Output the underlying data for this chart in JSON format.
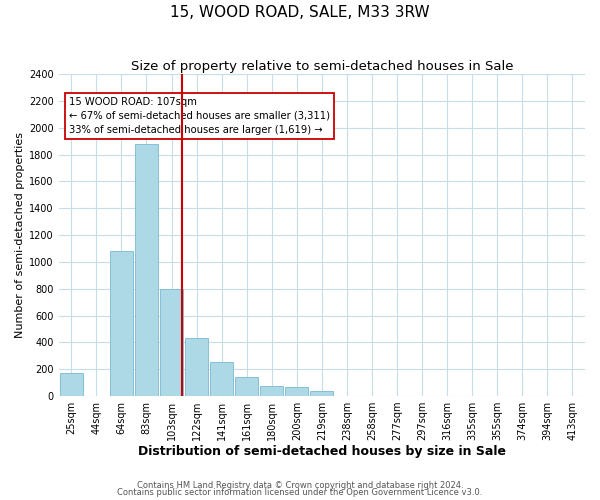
{
  "title": "15, WOOD ROAD, SALE, M33 3RW",
  "subtitle": "Size of property relative to semi-detached houses in Sale",
  "xlabel": "Distribution of semi-detached houses by size in Sale",
  "ylabel": "Number of semi-detached properties",
  "bar_labels": [
    "25sqm",
    "44sqm",
    "64sqm",
    "83sqm",
    "103sqm",
    "122sqm",
    "141sqm",
    "161sqm",
    "180sqm",
    "200sqm",
    "219sqm",
    "238sqm",
    "258sqm",
    "277sqm",
    "297sqm",
    "316sqm",
    "335sqm",
    "355sqm",
    "374sqm",
    "394sqm",
    "413sqm"
  ],
  "bar_values": [
    170,
    0,
    1080,
    1880,
    800,
    430,
    250,
    145,
    75,
    65,
    40,
    0,
    0,
    0,
    0,
    0,
    0,
    0,
    0,
    0,
    0
  ],
  "bar_color": "#add8e6",
  "bar_edge_color": "#7ab8d4",
  "vline_color": "#cc0000",
  "vline_index": 4,
  "annotation_title": "15 WOOD ROAD: 107sqm",
  "annotation_line1": "← 67% of semi-detached houses are smaller (3,311)",
  "annotation_line2": "33% of semi-detached houses are larger (1,619) →",
  "annotation_box_color": "#ffffff",
  "annotation_box_edge": "#cc0000",
  "ylim": [
    0,
    2400
  ],
  "yticks": [
    0,
    200,
    400,
    600,
    800,
    1000,
    1200,
    1400,
    1600,
    1800,
    2000,
    2200,
    2400
  ],
  "footnote1": "Contains HM Land Registry data © Crown copyright and database right 2024.",
  "footnote2": "Contains public sector information licensed under the Open Government Licence v3.0.",
  "bg_color": "#ffffff",
  "grid_color": "#c8dcea",
  "title_fontsize": 11,
  "subtitle_fontsize": 9.5,
  "xlabel_fontsize": 9,
  "ylabel_fontsize": 8,
  "tick_fontsize": 7,
  "footnote_fontsize": 6
}
